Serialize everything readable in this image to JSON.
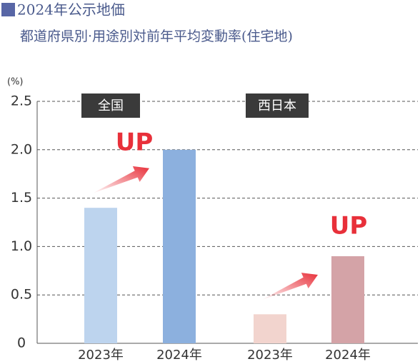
{
  "chart_data": {
    "type": "bar",
    "title": "2024年公示地価",
    "subtitle": "都道府県別·用途別対前年平均変動率(住宅地)",
    "y_unit": "(%)",
    "groups": [
      {
        "name": "全国",
        "categories": [
          "2023年",
          "2024年"
        ],
        "values": [
          1.4,
          2.0
        ],
        "colors": [
          "#bdd4ee",
          "#8cb0de"
        ],
        "annotation": "UP"
      },
      {
        "name": "西日本",
        "categories": [
          "2023年",
          "2024年"
        ],
        "values": [
          0.3,
          0.9
        ],
        "colors": [
          "#f2d4ce",
          "#d4a3a7"
        ],
        "annotation": "UP"
      }
    ],
    "ylim": [
      0,
      2.5
    ],
    "yticks": [
      0,
      0.5,
      {
        "value": 1,
        "label": "1.0"
      },
      1.5,
      {
        "value": 2,
        "label": "2.0"
      },
      2.5
    ],
    "grid": true
  }
}
